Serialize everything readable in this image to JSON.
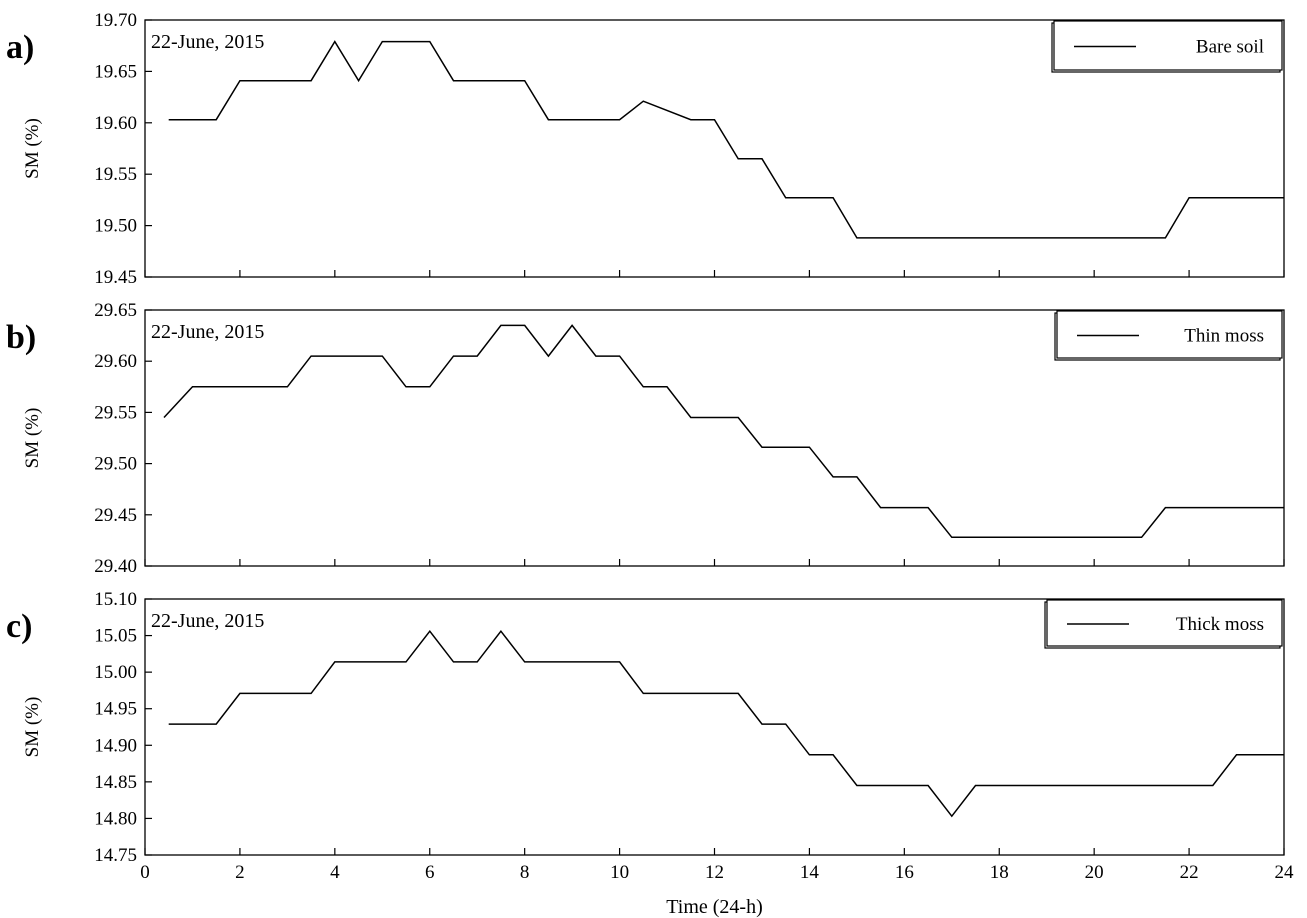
{
  "chart_data": [
    {
      "type": "line",
      "panel_label": "a)",
      "annotation": "22-June, 2015",
      "ylabel": "SM (%)",
      "ylim": [
        19.45,
        19.7
      ],
      "yticks": [
        "19.45",
        "19.50",
        "19.55",
        "19.60",
        "19.65",
        "19.70"
      ],
      "legend_position": "top-right",
      "series": [
        {
          "name": "Bare soil",
          "x": [
            0.5,
            1.5,
            2.0,
            3.5,
            4.0,
            4.5,
            5.0,
            6.0,
            6.5,
            8.0,
            8.5,
            10.0,
            10.5,
            11.5,
            12.0,
            12.5,
            13.0,
            13.5,
            14.5,
            15.0,
            21.5,
            22.0,
            24.0
          ],
          "y": [
            19.603,
            19.603,
            19.641,
            19.641,
            19.679,
            19.641,
            19.679,
            19.679,
            19.641,
            19.641,
            19.603,
            19.603,
            19.621,
            19.603,
            19.603,
            19.565,
            19.565,
            19.527,
            19.527,
            19.488,
            19.488,
            19.527,
            19.527
          ]
        }
      ]
    },
    {
      "type": "line",
      "panel_label": "b)",
      "annotation": "22-June, 2015",
      "ylabel": "SM (%)",
      "ylim": [
        29.4,
        29.65
      ],
      "yticks": [
        "29.40",
        "29.45",
        "29.50",
        "29.55",
        "29.60",
        "29.65"
      ],
      "legend_position": "top-right",
      "series": [
        {
          "name": "Thin moss",
          "x": [
            0.4,
            1.0,
            3.0,
            3.5,
            5.0,
            5.5,
            6.0,
            6.5,
            7.0,
            7.5,
            8.0,
            8.5,
            9.0,
            9.5,
            10.0,
            10.5,
            11.0,
            11.5,
            12.5,
            13.0,
            14.0,
            14.5,
            15.0,
            15.5,
            16.5,
            17.0,
            21.0,
            21.5,
            24.0
          ],
          "y": [
            29.545,
            29.575,
            29.575,
            29.605,
            29.605,
            29.575,
            29.575,
            29.605,
            29.605,
            29.635,
            29.635,
            29.605,
            29.635,
            29.605,
            29.605,
            29.575,
            29.575,
            29.545,
            29.545,
            29.516,
            29.516,
            29.487,
            29.487,
            29.457,
            29.457,
            29.428,
            29.428,
            29.457,
            29.457
          ]
        }
      ]
    },
    {
      "type": "line",
      "panel_label": "c)",
      "annotation": "22-June, 2015",
      "ylabel": "SM (%)",
      "ylim": [
        14.75,
        15.1
      ],
      "yticks": [
        "14.75",
        "14.80",
        "14.85",
        "14.90",
        "14.95",
        "15.00",
        "15.05",
        "15.10"
      ],
      "legend_position": "top-right",
      "xlabel": "Time (24-h)",
      "xlim": [
        0,
        24
      ],
      "xticks": [
        "0",
        "2",
        "4",
        "6",
        "8",
        "10",
        "12",
        "14",
        "16",
        "18",
        "20",
        "22",
        "24"
      ],
      "series": [
        {
          "name": "Thick moss",
          "x": [
            0.5,
            1.5,
            2.0,
            3.5,
            4.0,
            5.5,
            6.0,
            6.5,
            7.0,
            7.5,
            8.0,
            10.0,
            10.5,
            12.5,
            13.0,
            13.5,
            14.0,
            14.5,
            15.0,
            16.5,
            17.0,
            17.5,
            22.5,
            23.0,
            24.0
          ],
          "y": [
            14.929,
            14.929,
            14.971,
            14.971,
            15.014,
            15.014,
            15.056,
            15.014,
            15.014,
            15.056,
            15.014,
            15.014,
            14.971,
            14.971,
            14.929,
            14.929,
            14.887,
            14.887,
            14.845,
            14.845,
            14.803,
            14.845,
            14.845,
            14.887,
            14.887
          ]
        }
      ]
    }
  ]
}
